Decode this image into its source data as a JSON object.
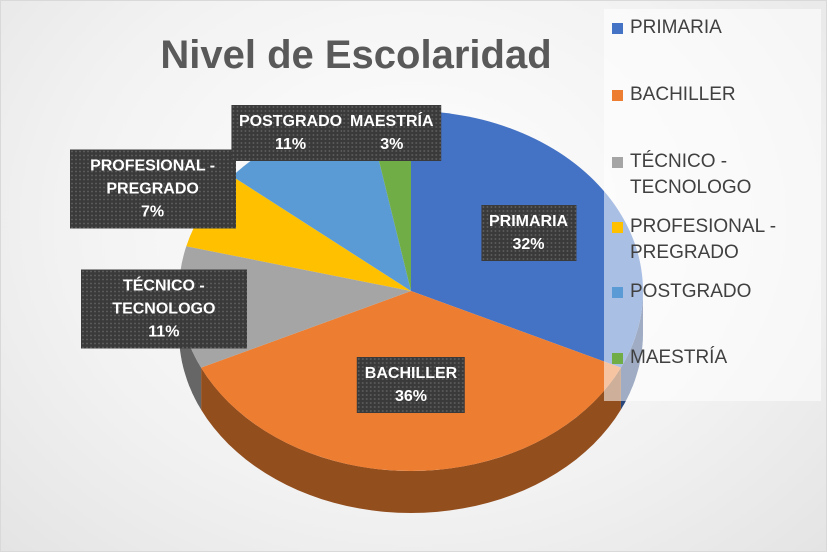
{
  "chart_data": {
    "type": "pie",
    "title": "Nivel de Escolaridad",
    "categories": [
      "PRIMARIA",
      "BACHILLER",
      "TÉCNICO - TECNOLOGO",
      "PROFESIONAL - PREGRADO",
      "POSTGRADO",
      "MAESTRÍA"
    ],
    "values": [
      32,
      36,
      11,
      7,
      11,
      3
    ],
    "value_labels": [
      "32%",
      "36%",
      "11%",
      "7%",
      "11%",
      "3%"
    ],
    "colors": [
      "#4472c4",
      "#ed7d31",
      "#a5a5a5",
      "#ffc000",
      "#5b9bd5",
      "#70ad47"
    ],
    "legend": "right"
  }
}
